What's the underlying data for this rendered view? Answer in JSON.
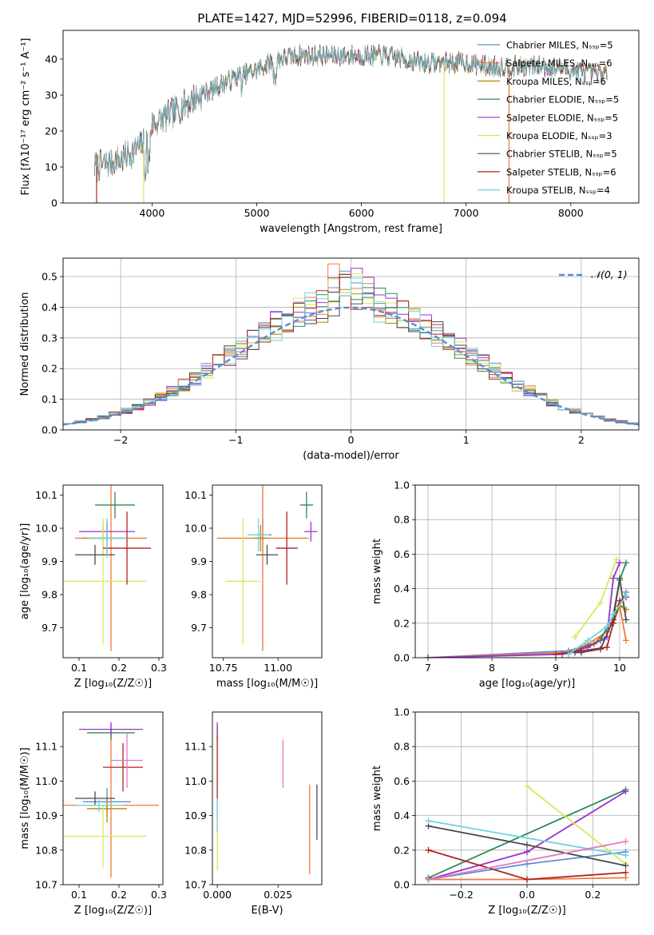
{
  "figure_title": "PLATE=1427, MJD=52996, FIBERID=0118, z=0.094",
  "colors": {
    "Chabrier MILES": "#5a8fd6",
    "Salpeter MILES": "#f07a3c",
    "Kroupa MILES": "#b8860b",
    "Chabrier ELODIE": "#2e8b57",
    "Salpeter ELODIE": "#9932cc",
    "Kroupa ELODIE": "#d8e85a",
    "Chabrier STELIB": "#4a4a4a",
    "Salpeter STELIB": "#b22222",
    "Kroupa STELIB": "#6fd3e0"
  },
  "chart_data": [
    {
      "id": "spectrum",
      "type": "line",
      "title": "PLATE=1427, MJD=52996, FIBERID=0118, z=0.094",
      "xlabel": "wavelength [Angstrom, rest frame]",
      "ylabel": "Flux [fλ10⁻¹⁷ erg cm⁻² s⁻¹ A⁻¹]",
      "xlim": [
        3150,
        8650
      ],
      "ylim": [
        0,
        48
      ],
      "xticks": [
        4000,
        5000,
        6000,
        7000,
        8000
      ],
      "yticks": [
        0,
        10,
        20,
        30,
        40
      ],
      "legend_position": "top-right",
      "legend": [
        "Chabrier MILES, Nₛₛₚ=5",
        "Salpeter MILES, Nₛₛₚ=6",
        "Kroupa MILES, Nₛₛₚ=6",
        "Chabrier ELODIE, Nₛₛₚ=5",
        "Salpeter ELODIE, Nₛₛₚ=5",
        "Kroupa ELODIE, Nₛₛₚ=3",
        "Chabrier STELIB, Nₛₛₚ=5",
        "Salpeter STELIB, Nₛₛₚ=6",
        "Kroupa STELIB, Nₛₛₚ=4"
      ],
      "continuum": [
        [
          3450,
          10
        ],
        [
          3700,
          12
        ],
        [
          3950,
          17
        ],
        [
          4000,
          22
        ],
        [
          4200,
          25
        ],
        [
          4400,
          29
        ],
        [
          4600,
          32
        ],
        [
          4800,
          35
        ],
        [
          5000,
          37
        ],
        [
          5200,
          40
        ],
        [
          5400,
          41
        ],
        [
          5600,
          41
        ],
        [
          5800,
          41
        ],
        [
          6000,
          41
        ],
        [
          6200,
          41
        ],
        [
          6400,
          40
        ],
        [
          6600,
          39
        ],
        [
          6800,
          39
        ],
        [
          7000,
          39
        ],
        [
          7200,
          38
        ],
        [
          7400,
          38
        ],
        [
          7600,
          38
        ],
        [
          7800,
          38
        ],
        [
          8000,
          37
        ],
        [
          8200,
          36
        ],
        [
          8350,
          36
        ]
      ],
      "range": [
        3450,
        8350
      ]
    },
    {
      "id": "residuals",
      "type": "bar",
      "xlabel": "(data-model)/error",
      "ylabel": "Normed distribution",
      "xlim": [
        -2.5,
        2.5
      ],
      "ylim": [
        0,
        0.56
      ],
      "xticks": [
        -2,
        -1,
        0,
        1,
        2
      ],
      "yticks": [
        0.0,
        0.1,
        0.2,
        0.3,
        0.4,
        0.5
      ],
      "bin_width": 0.1,
      "legend_position": "top-right",
      "legend": "𝒩(0, 1)",
      "gaussian": {
        "mean": 0,
        "sigma": 1
      }
    },
    {
      "id": "age_vs_Z",
      "type": "scatter",
      "xlabel": "Z [log₁₀(Z/Z☉)]",
      "ylabel": "age  [log₁₀(age/yr)]",
      "xlim": [
        0.06,
        0.31
      ],
      "ylim": [
        9.61,
        10.13
      ],
      "xticks": [
        0.1,
        0.2,
        0.3
      ],
      "yticks": [
        9.7,
        9.8,
        9.9,
        10.0,
        10.1
      ],
      "points": [
        {
          "series": "Chabrier MILES",
          "x": 0.17,
          "y": 9.97,
          "xerr": 0.05,
          "yerr": 0.05
        },
        {
          "series": "Salpeter MILES",
          "x": 0.18,
          "y": 9.97,
          "xerr": 0.09,
          "yerr": 0.34
        },
        {
          "series": "Kroupa MILES",
          "x": 0.16,
          "y": 9.97,
          "xerr": 0.05,
          "yerr": 0.05
        },
        {
          "series": "Chabrier ELODIE",
          "x": 0.19,
          "y": 10.07,
          "xerr": 0.05,
          "yerr": 0.04
        },
        {
          "series": "Salpeter ELODIE",
          "x": 0.17,
          "y": 9.99,
          "xerr": 0.07,
          "yerr": 0.03
        },
        {
          "series": "Kroupa ELODIE",
          "x": 0.16,
          "y": 9.84,
          "xerr": 0.11,
          "yerr": 0.19
        },
        {
          "series": "Chabrier STELIB",
          "x": 0.14,
          "y": 9.92,
          "xerr": 0.05,
          "yerr": 0.03
        },
        {
          "series": "Salpeter STELIB",
          "x": 0.22,
          "y": 9.94,
          "xerr": 0.06,
          "yerr": 0.11
        },
        {
          "series": "Kroupa STELIB",
          "x": 0.17,
          "y": 9.97,
          "xerr": 0.05,
          "yerr": 0.06
        }
      ]
    },
    {
      "id": "age_vs_mass",
      "type": "scatter",
      "xlabel": "mass [log₁₀(M/M☉)]",
      "ylabel": "",
      "xlim": [
        10.7,
        11.2
      ],
      "ylim": [
        9.61,
        10.13
      ],
      "xticks": [
        10.75,
        11.0
      ],
      "xtick_labels": [
        "10.75",
        "11.00"
      ],
      "yticks": [
        9.7,
        9.8,
        9.9,
        10.0,
        10.1
      ],
      "points": [
        {
          "series": "Chabrier MILES",
          "x": 10.93,
          "y": 9.98,
          "xerr": 0.04,
          "yerr": 0.05
        },
        {
          "series": "Salpeter MILES",
          "x": 10.93,
          "y": 9.97,
          "xerr": 0.21,
          "yerr": 0.34
        },
        {
          "series": "Kroupa MILES",
          "x": 10.92,
          "y": 9.97,
          "xerr": 0.03,
          "yerr": 0.04
        },
        {
          "series": "Chabrier ELODIE",
          "x": 11.13,
          "y": 10.07,
          "xerr": 0.03,
          "yerr": 0.04
        },
        {
          "series": "Salpeter ELODIE",
          "x": 11.15,
          "y": 9.99,
          "xerr": 0.03,
          "yerr": 0.03
        },
        {
          "series": "Kroupa ELODIE",
          "x": 10.84,
          "y": 9.84,
          "xerr": 0.08,
          "yerr": 0.19
        },
        {
          "series": "Chabrier STELIB",
          "x": 10.95,
          "y": 9.92,
          "xerr": 0.05,
          "yerr": 0.03
        },
        {
          "series": "Salpeter STELIB",
          "x": 11.04,
          "y": 9.94,
          "xerr": 0.05,
          "yerr": 0.11
        },
        {
          "series": "Kroupa STELIB",
          "x": 10.91,
          "y": 9.98,
          "xerr": 0.05,
          "yerr": 0.05
        }
      ]
    },
    {
      "id": "mass_weight_vs_age",
      "type": "line",
      "xlabel": "age  [log₁₀(age/yr)]",
      "ylabel": "mass weight",
      "xlim": [
        6.8,
        10.3
      ],
      "ylim": [
        0,
        1.0
      ],
      "xticks": [
        7,
        8,
        9,
        10
      ],
      "yticks": [
        0.0,
        0.2,
        0.4,
        0.6,
        0.8,
        1.0
      ],
      "series": [
        {
          "name": "Chabrier MILES",
          "x": [
            7.0,
            9.2,
            9.6,
            9.9,
            10.0,
            10.1
          ],
          "y": [
            0.0,
            0.04,
            0.08,
            0.2,
            0.3,
            0.38
          ]
        },
        {
          "name": "Salpeter MILES",
          "x": [
            7.0,
            9.2,
            9.5,
            9.8,
            10.0,
            10.1
          ],
          "y": [
            0.0,
            0.03,
            0.08,
            0.15,
            0.3,
            0.1
          ]
        },
        {
          "name": "Kroupa MILES",
          "x": [
            9.2,
            9.6,
            9.9,
            10.0,
            10.1
          ],
          "y": [
            0.03,
            0.08,
            0.2,
            0.3,
            0.28
          ]
        },
        {
          "name": "Chabrier ELODIE",
          "x": [
            9.3,
            9.7,
            9.9,
            10.0,
            10.1
          ],
          "y": [
            0.04,
            0.1,
            0.25,
            0.45,
            0.55
          ]
        },
        {
          "name": "Salpeter ELODIE",
          "x": [
            7.0,
            9.1,
            9.5,
            9.8,
            9.9,
            10.0
          ],
          "y": [
            0.0,
            0.02,
            0.06,
            0.12,
            0.46,
            0.55
          ]
        },
        {
          "name": "Kroupa ELODIE",
          "x": [
            9.3,
            9.7,
            9.95
          ],
          "y": [
            0.12,
            0.32,
            0.57
          ]
        },
        {
          "name": "Chabrier STELIB",
          "x": [
            9.3,
            9.4,
            9.7,
            9.9,
            10.0,
            10.1
          ],
          "y": [
            0.03,
            0.03,
            0.05,
            0.22,
            0.46,
            0.22
          ]
        },
        {
          "name": "Salpeter STELIB",
          "x": [
            9.0,
            9.4,
            9.8,
            9.9,
            10.0,
            10.1
          ],
          "y": [
            0.02,
            0.04,
            0.06,
            0.2,
            0.33,
            0.35
          ]
        },
        {
          "name": "Kroupa STELIB",
          "x": [
            9.2,
            9.5,
            9.8,
            9.9,
            10.1
          ],
          "y": [
            0.02,
            0.1,
            0.18,
            0.25,
            0.36
          ]
        }
      ]
    },
    {
      "id": "mass_vs_Z",
      "type": "scatter",
      "xlabel": "Z [log₁₀(Z/Z☉)]",
      "ylabel": "mass [log₁₀(M/M☉)]",
      "xlim": [
        0.06,
        0.31
      ],
      "ylim": [
        10.7,
        11.2
      ],
      "xticks": [
        0.1,
        0.2,
        0.3
      ],
      "yticks": [
        10.7,
        10.8,
        10.9,
        11.0,
        11.1
      ],
      "points": [
        {
          "series": "Chabrier MILES",
          "x": 0.17,
          "y": 10.94,
          "xerr": 0.06,
          "yerr": 0.04
        },
        {
          "series": "Salpeter MILES",
          "x": 0.18,
          "y": 10.93,
          "xerr": 0.12,
          "yerr": 0.21
        },
        {
          "series": "Kroupa MILES",
          "x": 0.17,
          "y": 10.92,
          "xerr": 0.05,
          "yerr": 0.04
        },
        {
          "series": "Chabrier ELODIE",
          "x": 0.18,
          "y": 11.14,
          "xerr": 0.06,
          "yerr": 0.02
        },
        {
          "series": "Salpeter ELODIE",
          "x": 0.18,
          "y": 11.15,
          "xerr": 0.08,
          "yerr": 0.02
        },
        {
          "series": "Kroupa ELODIE",
          "x": 0.16,
          "y": 10.84,
          "xerr": 0.11,
          "yerr": 0.09
        },
        {
          "series": "Chabrier STELIB",
          "x": 0.14,
          "y": 10.95,
          "xerr": 0.05,
          "yerr": 0.02
        },
        {
          "series": "Salpeter STELIB",
          "x": 0.21,
          "y": 11.04,
          "xerr": 0.05,
          "yerr": 0.07
        },
        {
          "series": "Kroupa STELIB",
          "x": 0.15,
          "y": 10.93,
          "xerr": 0.06,
          "yerr": 0.02
        }
      ],
      "extra_points": [
        {
          "color": "#e377c2",
          "x": 0.22,
          "y": 11.06,
          "xerr": 0.04,
          "yerr": 0.08
        }
      ]
    },
    {
      "id": "mass_vs_ebv",
      "type": "scatter",
      "xlabel": "E(B-V)",
      "ylabel": "",
      "xlim": [
        -0.002,
        0.043
      ],
      "ylim": [
        10.7,
        11.2
      ],
      "xticks": [
        0.0,
        0.025
      ],
      "xtick_labels": [
        "0.000",
        "0.025"
      ],
      "yticks": [
        10.7,
        10.8,
        10.9,
        11.0,
        11.1
      ],
      "points": [
        {
          "series": "Chabrier MILES",
          "x": 0.0,
          "y": 10.92,
          "yerr": 0.03
        },
        {
          "series": "Salpeter MILES",
          "x": 0.038,
          "y": 10.86,
          "yerr": 0.13
        },
        {
          "series": "Chabrier ELODIE",
          "x": 0.0,
          "y": 11.14,
          "yerr": 0.02
        },
        {
          "series": "Salpeter ELODIE",
          "x": 0.0,
          "y": 11.15,
          "yerr": 0.02
        },
        {
          "series": "Kroupa ELODIE",
          "x": 0.0,
          "y": 10.82,
          "yerr": 0.08
        },
        {
          "series": "Salpeter STELIB",
          "x": 0.0,
          "y": 11.04,
          "yerr": 0.09
        },
        {
          "series": "Kroupa STELIB",
          "x": 0.0,
          "y": 10.9,
          "yerr": 0.05
        },
        {
          "series": "Chabrier STELIB",
          "x": 0.041,
          "y": 10.91,
          "yerr": 0.08
        }
      ],
      "extra_points": [
        {
          "color": "#e377c2",
          "x": 0.027,
          "y": 11.05,
          "yerr": 0.07
        }
      ]
    },
    {
      "id": "mass_weight_vs_Z",
      "type": "line",
      "xlabel": "Z [log₁₀(Z/Z☉)]",
      "ylabel": "mass weight",
      "xlim": [
        -0.34,
        0.34
      ],
      "ylim": [
        0,
        1.0
      ],
      "xticks": [
        -0.2,
        0.0,
        0.2
      ],
      "xtick_labels": [
        "−0.2",
        "0.0",
        "0.2"
      ],
      "yticks": [
        0.0,
        0.2,
        0.4,
        0.6,
        0.8,
        1.0
      ],
      "series": [
        {
          "name": "Chabrier MILES",
          "x": [
            -0.3,
            0.0,
            0.3
          ],
          "y": [
            0.03,
            0.12,
            0.19
          ]
        },
        {
          "name": "Salpeter MILES",
          "x": [
            -0.3,
            0.0,
            0.3
          ],
          "y": [
            0.03,
            0.03,
            0.04
          ]
        },
        {
          "name": "Chabrier ELODIE",
          "x": [
            -0.3,
            0.3
          ],
          "y": [
            0.04,
            0.55
          ]
        },
        {
          "name": "Salpeter ELODIE",
          "x": [
            -0.3,
            0.0,
            0.3
          ],
          "y": [
            0.03,
            0.19,
            0.54
          ]
        },
        {
          "name": "Kroupa ELODIE",
          "x": [
            0.0,
            0.3
          ],
          "y": [
            0.57,
            0.12
          ]
        },
        {
          "name": "Chabrier STELIB",
          "x": [
            -0.3,
            0.0,
            0.3
          ],
          "y": [
            0.34,
            0.23,
            0.11
          ]
        },
        {
          "name": "Salpeter STELIB",
          "x": [
            -0.3,
            0.0,
            0.3
          ],
          "y": [
            0.2,
            0.03,
            0.07
          ]
        },
        {
          "name": "Kroupa STELIB",
          "x": [
            -0.3,
            0.3
          ],
          "y": [
            0.37,
            0.17
          ]
        }
      ],
      "extra_series": [
        {
          "color": "#e377c2",
          "x": [
            -0.3,
            0.3
          ],
          "y": [
            0.03,
            0.25
          ]
        }
      ]
    }
  ]
}
